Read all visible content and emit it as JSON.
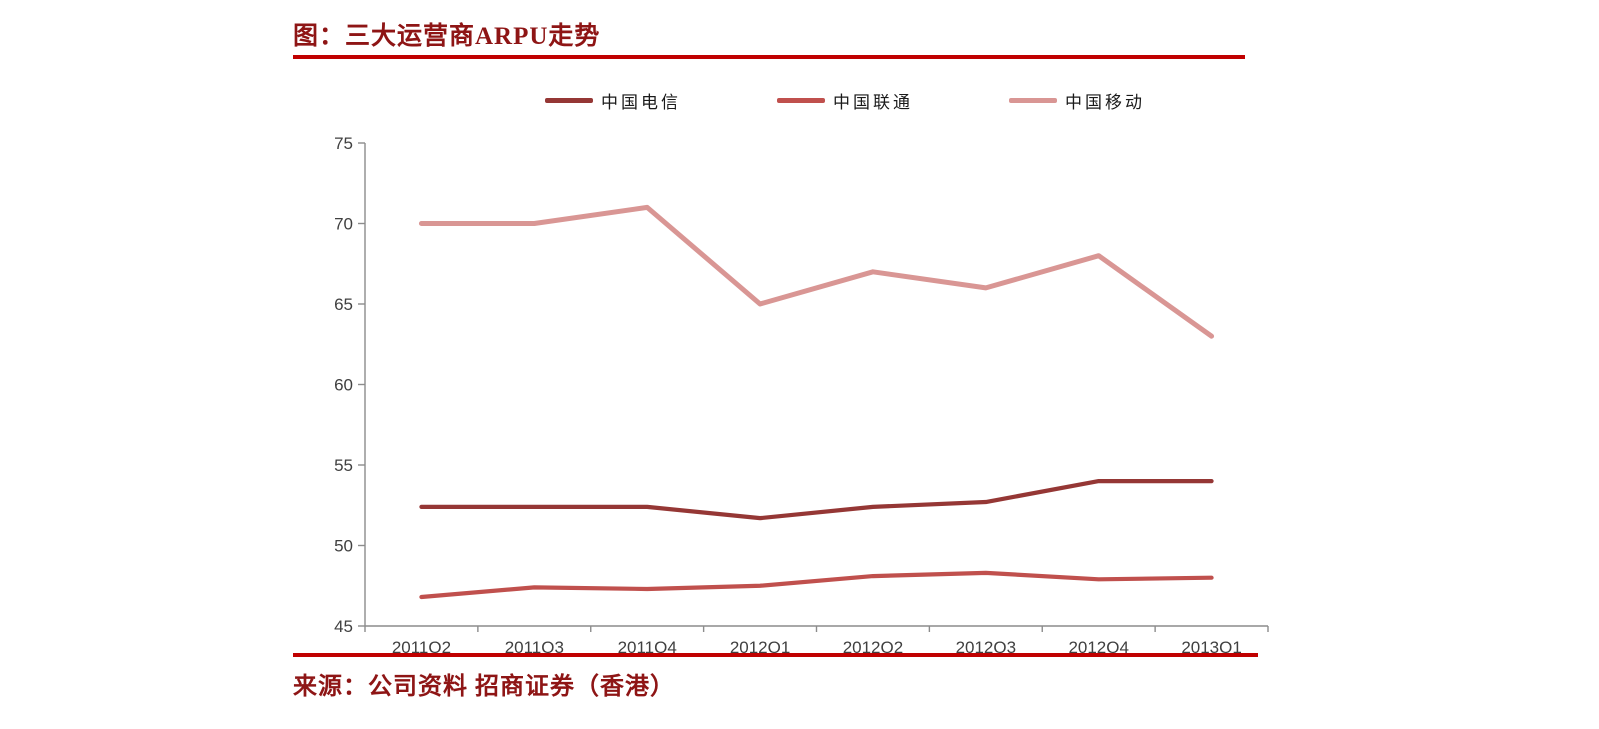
{
  "page": {
    "title": "图：三大运营商ARPU走势",
    "source": "来源：公司资料 招商证券（香港）"
  },
  "colors": {
    "rule_red": "#C00000",
    "title_text": "#8E1515",
    "source_text": "#8E1515",
    "axis_line": "#8C8C8C",
    "tick_text": "#404040"
  },
  "chart_data": {
    "type": "line",
    "title": "图：三大运营商ARPU走势",
    "categories": [
      "2011Q2",
      "2011Q3",
      "2011Q4",
      "2012Q1",
      "2012Q2",
      "2012Q3",
      "2012Q4",
      "2013Q1"
    ],
    "series": [
      {
        "name": "中国电信",
        "color": "#953735",
        "values": [
          52.4,
          52.4,
          52.4,
          51.7,
          52.4,
          52.7,
          54.0,
          54.0
        ]
      },
      {
        "name": "中国联通",
        "color": "#C0504D",
        "values": [
          46.8,
          47.4,
          47.3,
          47.5,
          48.1,
          48.3,
          47.9,
          48.0
        ]
      },
      {
        "name": "中国移动",
        "color": "#D99694",
        "values": [
          70,
          70,
          71,
          65,
          67,
          66,
          68,
          63
        ]
      }
    ],
    "xlabel": "",
    "ylabel": "",
    "ylim": [
      45,
      75
    ],
    "yticks": [
      45,
      50,
      55,
      60,
      65,
      70,
      75
    ],
    "grid": false,
    "legend_position": "top"
  }
}
